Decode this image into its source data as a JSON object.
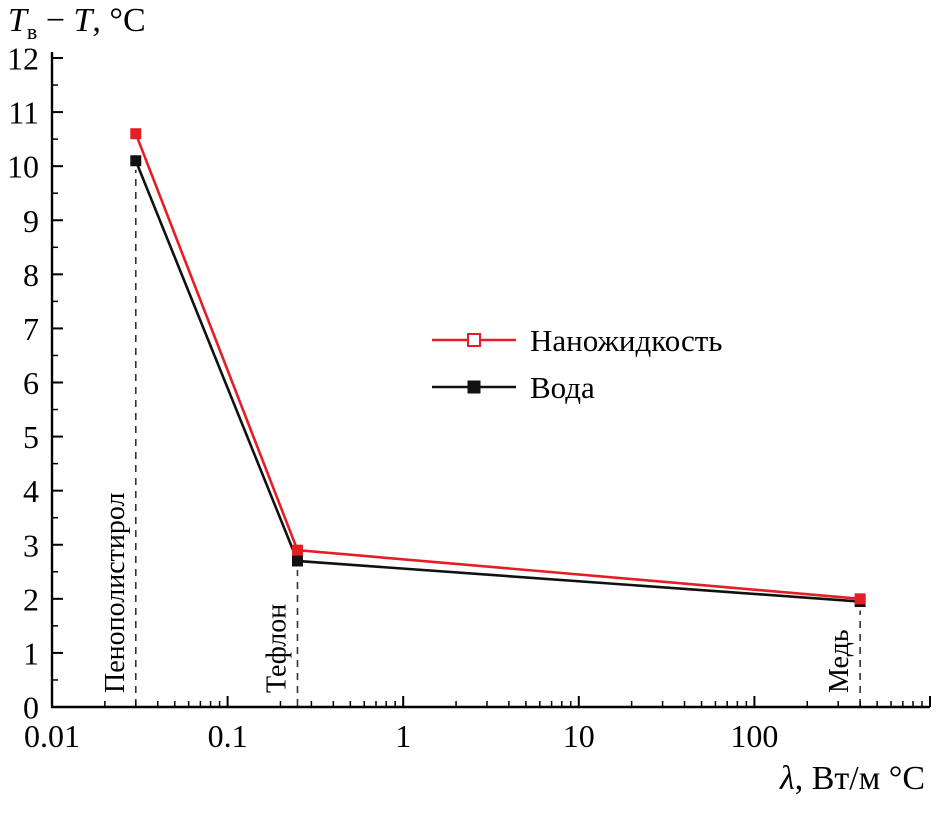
{
  "chart_data": {
    "type": "line",
    "x_scale": "log",
    "xlim": [
      0.01,
      1000
    ],
    "ylim": [
      0,
      12
    ],
    "grid": false,
    "legend_position": "center",
    "xlabel_parts": {
      "lambda": "λ",
      "rest": ", Вт/м °C"
    },
    "ylabel_parts": {
      "t1": "T",
      "sub": "в",
      "dash": " − ",
      "t2": "T",
      "rest": ", °C"
    },
    "x_ticks": [
      {
        "value": 0.01,
        "label": "0.01"
      },
      {
        "value": 0.1,
        "label": "0.1"
      },
      {
        "value": 1,
        "label": "1"
      },
      {
        "value": 10,
        "label": "10"
      },
      {
        "value": 100,
        "label": "100"
      },
      {
        "value": 1000,
        "label": ""
      }
    ],
    "y_ticks": [
      0,
      1,
      2,
      3,
      4,
      5,
      6,
      7,
      8,
      9,
      10,
      11,
      12
    ],
    "series": [
      {
        "name": "Наножидкость",
        "color": "#e31e24",
        "marker": "filled-square",
        "legend_marker": "open-square",
        "points": [
          [
            0.03,
            10.6
          ],
          [
            0.25,
            2.9
          ],
          [
            400,
            2.0
          ]
        ]
      },
      {
        "name": "Вода",
        "color": "#111111",
        "marker": "filled-square",
        "legend_marker": "filled-square",
        "points": [
          [
            0.03,
            10.1
          ],
          [
            0.25,
            2.7
          ],
          [
            400,
            1.95
          ]
        ]
      }
    ],
    "annotations": [
      {
        "label": "Пенополистирол",
        "x": 0.03
      },
      {
        "label": "Тефлон",
        "x": 0.25
      },
      {
        "label": "Медь",
        "x": 400
      }
    ],
    "colors": {
      "axis": "#000000",
      "annotation_line": "#333333"
    }
  }
}
